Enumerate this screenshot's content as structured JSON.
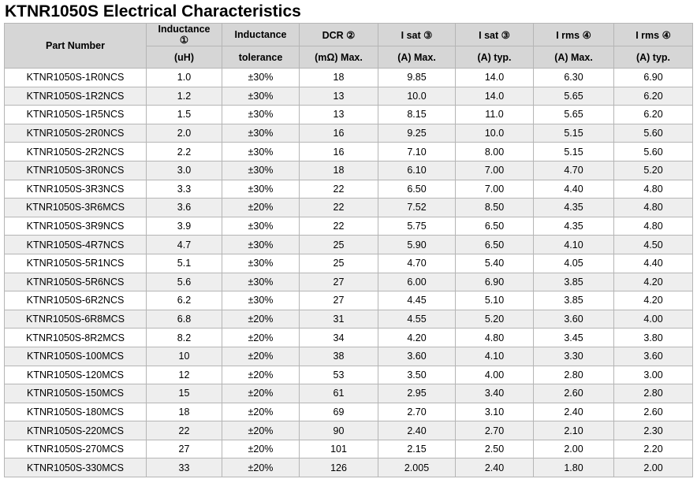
{
  "title": "KTNR1050S Electrical Characteristics",
  "header": {
    "part_number": "Part Number",
    "inductance_top": "Inductance",
    "inductance_mark": "①",
    "inductance_unit": "(uH)",
    "tolerance_top": "Inductance",
    "tolerance_bottom": "tolerance",
    "dcr_top": "DCR ②",
    "dcr_bottom": "(mΩ) Max.",
    "isat_max_top": "I sat ③",
    "isat_max_bottom": "(A) Max.",
    "isat_typ_top": "I sat ③",
    "isat_typ_bottom": "(A) typ.",
    "irms_max_top": "I rms ④",
    "irms_max_bottom": "(A) Max.",
    "irms_typ_top": "I rms ④",
    "irms_typ_bottom": "(A) typ."
  },
  "rows": [
    [
      "KTNR1050S-1R0NCS",
      "1.0",
      "±30%",
      "18",
      "9.85",
      "14.0",
      "6.30",
      "6.90"
    ],
    [
      "KTNR1050S-1R2NCS",
      "1.2",
      "±30%",
      "13",
      "10.0",
      "14.0",
      "5.65",
      "6.20"
    ],
    [
      "KTNR1050S-1R5NCS",
      "1.5",
      "±30%",
      "13",
      "8.15",
      "11.0",
      "5.65",
      "6.20"
    ],
    [
      "KTNR1050S-2R0NCS",
      "2.0",
      "±30%",
      "16",
      "9.25",
      "10.0",
      "5.15",
      "5.60"
    ],
    [
      "KTNR1050S-2R2NCS",
      "2.2",
      "±30%",
      "16",
      "7.10",
      "8.00",
      "5.15",
      "5.60"
    ],
    [
      "KTNR1050S-3R0NCS",
      "3.0",
      "±30%",
      "18",
      "6.10",
      "7.00",
      "4.70",
      "5.20"
    ],
    [
      "KTNR1050S-3R3NCS",
      "3.3",
      "±30%",
      "22",
      "6.50",
      "7.00",
      "4.40",
      "4.80"
    ],
    [
      "KTNR1050S-3R6MCS",
      "3.6",
      "±20%",
      "22",
      "7.52",
      "8.50",
      "4.35",
      "4.80"
    ],
    [
      "KTNR1050S-3R9NCS",
      "3.9",
      "±30%",
      "22",
      "5.75",
      "6.50",
      "4.35",
      "4.80"
    ],
    [
      "KTNR1050S-4R7NCS",
      "4.7",
      "±30%",
      "25",
      "5.90",
      "6.50",
      "4.10",
      "4.50"
    ],
    [
      "KTNR1050S-5R1NCS",
      "5.1",
      "±30%",
      "25",
      "4.70",
      "5.40",
      "4.05",
      "4.40"
    ],
    [
      "KTNR1050S-5R6NCS",
      "5.6",
      "±30%",
      "27",
      "6.00",
      "6.90",
      "3.85",
      "4.20"
    ],
    [
      "KTNR1050S-6R2NCS",
      "6.2",
      "±30%",
      "27",
      "4.45",
      "5.10",
      "3.85",
      "4.20"
    ],
    [
      "KTNR1050S-6R8MCS",
      "6.8",
      "±20%",
      "31",
      "4.55",
      "5.20",
      "3.60",
      "4.00"
    ],
    [
      "KTNR1050S-8R2MCS",
      "8.2",
      "±20%",
      "34",
      "4.20",
      "4.80",
      "3.45",
      "3.80"
    ],
    [
      "KTNR1050S-100MCS",
      "10",
      "±20%",
      "38",
      "3.60",
      "4.10",
      "3.30",
      "3.60"
    ],
    [
      "KTNR1050S-120MCS",
      "12",
      "±20%",
      "53",
      "3.50",
      "4.00",
      "2.80",
      "3.00"
    ],
    [
      "KTNR1050S-150MCS",
      "15",
      "±20%",
      "61",
      "2.95",
      "3.40",
      "2.60",
      "2.80"
    ],
    [
      "KTNR1050S-180MCS",
      "18",
      "±20%",
      "69",
      "2.70",
      "3.10",
      "2.40",
      "2.60"
    ],
    [
      "KTNR1050S-220MCS",
      "22",
      "±20%",
      "90",
      "2.40",
      "2.70",
      "2.10",
      "2.30"
    ],
    [
      "KTNR1050S-270MCS",
      "27",
      "±20%",
      "101",
      "2.15",
      "2.50",
      "2.00",
      "2.20"
    ],
    [
      "KTNR1050S-330MCS",
      "33",
      "±20%",
      "126",
      "2.005",
      "2.40",
      "1.80",
      "2.00"
    ]
  ]
}
